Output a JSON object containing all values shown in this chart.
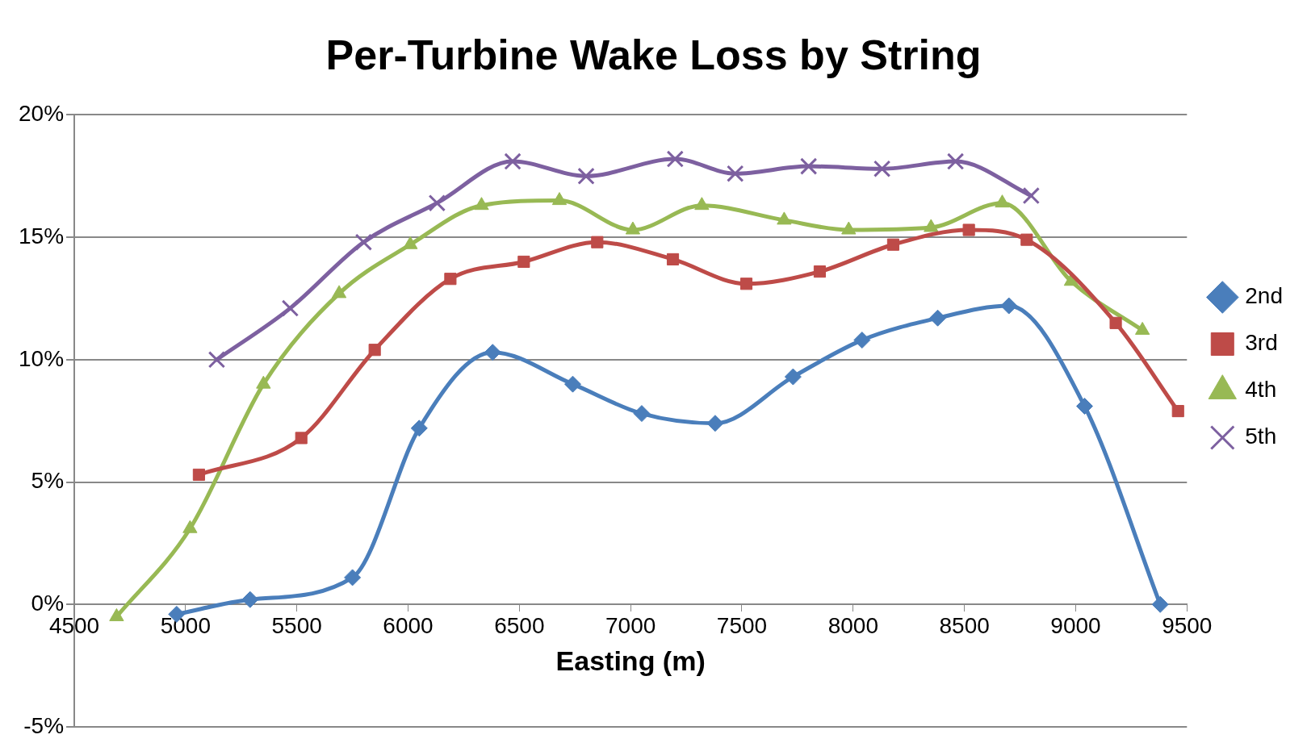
{
  "chart_data": {
    "type": "line",
    "title": "Per-Turbine Wake Loss by String",
    "xlabel": "Easting (m)",
    "xlim": [
      4500,
      9500
    ],
    "xticks": [
      4500,
      5000,
      5500,
      6000,
      6500,
      7000,
      7500,
      8000,
      8500,
      9000,
      9500
    ],
    "ylim": [
      -5,
      20
    ],
    "yticks": [
      {
        "value": -5,
        "label": "-5%"
      },
      {
        "value": 0,
        "label": "0%"
      },
      {
        "value": 5,
        "label": "5%"
      },
      {
        "value": 10,
        "label": "10%"
      },
      {
        "value": 15,
        "label": "15%"
      },
      {
        "value": 20,
        "label": "20%"
      }
    ],
    "grid": "y",
    "legend": "right",
    "series": [
      {
        "name": "2nd",
        "color": "#4a7ebb",
        "marker": "diamond",
        "x": [
          4960,
          5290,
          5750,
          6050,
          6380,
          6740,
          7050,
          7380,
          7730,
          8040,
          8380,
          8700,
          9040,
          9380
        ],
        "values": [
          -0.4,
          0.2,
          1.1,
          7.2,
          10.3,
          9.0,
          7.8,
          7.4,
          9.3,
          10.8,
          11.7,
          12.2,
          8.1,
          0.0
        ]
      },
      {
        "name": "3rd",
        "color": "#be4b48",
        "marker": "square",
        "x": [
          5060,
          5520,
          5850,
          6190,
          6520,
          6850,
          7190,
          7520,
          7850,
          8180,
          8520,
          8780,
          9180,
          9460
        ],
        "values": [
          5.3,
          6.8,
          10.4,
          13.3,
          14.0,
          14.8,
          14.1,
          13.1,
          13.6,
          14.7,
          15.3,
          14.9,
          11.5,
          7.9
        ]
      },
      {
        "name": "4th",
        "color": "#98b954",
        "marker": "triangle",
        "x": [
          4690,
          5020,
          5350,
          5690,
          6010,
          6330,
          6680,
          7010,
          7320,
          7690,
          7980,
          8350,
          8670,
          8980,
          9300
        ],
        "values": [
          -0.5,
          3.1,
          9.0,
          12.7,
          14.7,
          16.3,
          16.5,
          15.3,
          16.3,
          15.7,
          15.3,
          15.4,
          16.4,
          13.2,
          11.2
        ]
      },
      {
        "name": "5th",
        "color": "#7d60a0",
        "marker": "cross",
        "x": [
          5140,
          5470,
          5800,
          6130,
          6470,
          6800,
          7200,
          7470,
          7800,
          8130,
          8460,
          8800
        ],
        "values": [
          10.0,
          12.1,
          14.8,
          16.4,
          18.1,
          17.5,
          18.2,
          17.6,
          17.9,
          17.8,
          18.1,
          16.7
        ]
      }
    ]
  }
}
